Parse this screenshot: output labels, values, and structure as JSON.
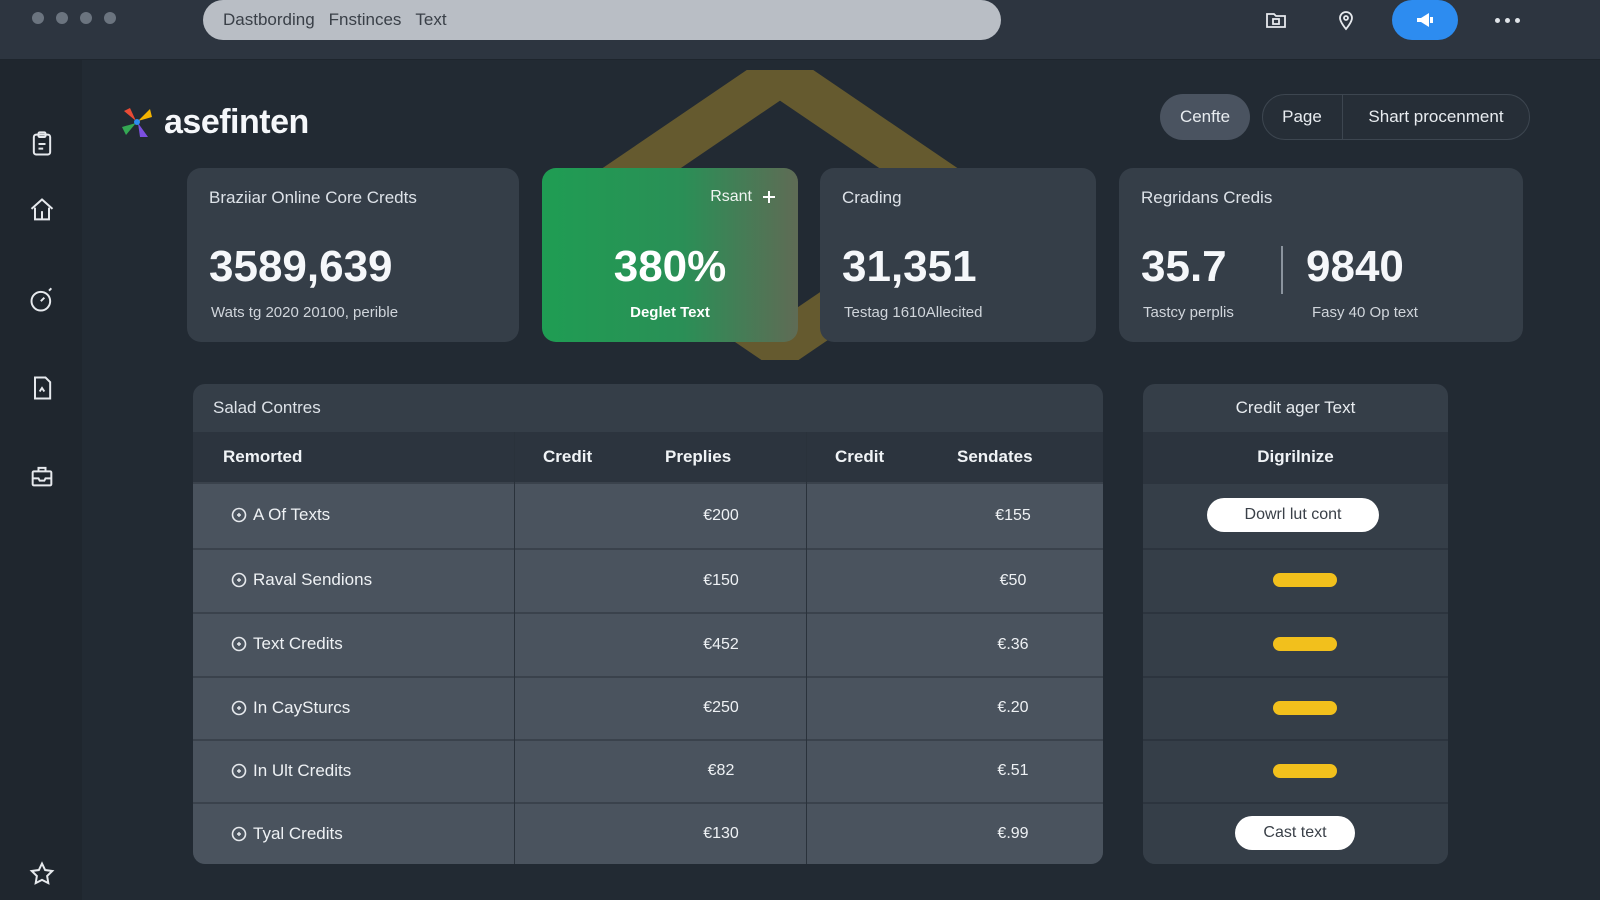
{
  "colors": {
    "accent": "#2d8cf0",
    "green_card": "#1f9d53",
    "bar": "#f2c01c",
    "background": "#222a33"
  },
  "topbar": {
    "address": [
      "Dastbording",
      "Fnstinces",
      "Text"
    ],
    "icons": [
      "folder-icon",
      "location-pin-icon",
      "megaphone-icon",
      "more-icon"
    ]
  },
  "sidebar": {
    "icons": [
      "clipboard-icon",
      "home-icon",
      "timer-icon",
      "document-icon",
      "inbox-icon",
      "star-icon"
    ]
  },
  "brand": {
    "name": "asefinten"
  },
  "header_buttons": {
    "a": "Cenfte",
    "b": "Page",
    "c": "Shart procenment"
  },
  "cards": [
    {
      "title": "Braziiar Online Core Credts",
      "value": "3589,639",
      "sub": "Wats tg 2020 20100, perible"
    },
    {
      "top": "Rsant",
      "value": "380%",
      "sub": "Deglet Text"
    },
    {
      "title": "Crading",
      "value": "31,351",
      "sub": "Testag 1610Allecited"
    },
    {
      "title": "Regridans Credis",
      "value_a": "35.7",
      "sub_a": "Tastcy perplis",
      "value_b": "9840",
      "sub_b": "Fasy 40 Op text"
    }
  ],
  "table": {
    "title": "Salad Contres",
    "headers": [
      "Remorted",
      "Credit",
      "Preplies",
      "Credit",
      "Sendates"
    ],
    "rows": [
      {
        "label": "A Of Texts",
        "v1": "€200",
        "v2": "€155"
      },
      {
        "label": "Raval Sendions",
        "v1": "€150",
        "v2": "€50"
      },
      {
        "label": "Text Credits",
        "v1": "€452",
        "v2": "€.36"
      },
      {
        "label": "In CaySturcs",
        "v1": "€250",
        "v2": "€.20"
      },
      {
        "label": "In Ult Credits",
        "v1": "€82",
        "v2": "€.51"
      },
      {
        "label": "Tyal Credits",
        "v1": "€130",
        "v2": "€.99"
      }
    ]
  },
  "right_panel": {
    "title": "Credit ager Text",
    "header": "Digrilnize",
    "button_top": "Dowrl lut cont",
    "button_bottom": "Cast text",
    "bar_levels": [
      1,
      1,
      1,
      1
    ]
  }
}
